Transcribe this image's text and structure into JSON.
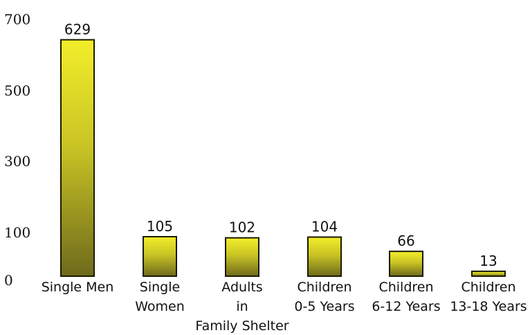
{
  "chart_data": {
    "type": "bar",
    "title": "",
    "xlabel": "",
    "ylabel": "",
    "categories": [
      [
        "Single Men"
      ],
      [
        "Single",
        "Women"
      ],
      [
        "Adults",
        "in",
        "Family Shelter"
      ],
      [
        "Children",
        "0-5 Years"
      ],
      [
        "Children",
        "6-12 Years"
      ],
      [
        "Children",
        "13-18 Years"
      ]
    ],
    "values": [
      629,
      105,
      102,
      104,
      66,
      13
    ],
    "data_labels": [
      "629",
      "105",
      "102",
      "104",
      "66",
      "13"
    ],
    "y_ticks": [
      0,
      100,
      300,
      500,
      700
    ],
    "y_tick_labels": [
      "0",
      "100",
      "300",
      "500",
      "700"
    ],
    "ylim": [
      0,
      700
    ],
    "grid": false,
    "legend": "none",
    "colors": {
      "bar_top": "#f2ee2a",
      "bar_bottom": "#6e6a1c",
      "bar_outline": "#1a1a00"
    }
  }
}
